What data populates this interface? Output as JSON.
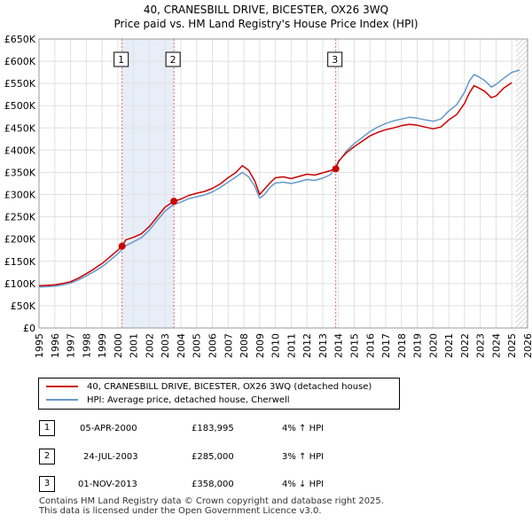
{
  "header": {
    "title": "40, CRANESBILL DRIVE, BICESTER, OX26 3WQ",
    "subtitle": "Price paid vs. HM Land Registry's House Price Index (HPI)"
  },
  "colors": {
    "price": "#cc0000",
    "hpi": "#6699cc",
    "shade": "#e8eef8",
    "marker_line": "#e06666"
  },
  "chart_data": {
    "type": "line",
    "title": "40, CRANESBILL DRIVE, BICESTER, OX26 3WQ",
    "subtitle": "Price paid vs. HM Land Registry's House Price Index (HPI)",
    "xlabel": "",
    "ylabel": "",
    "xlim": [
      1995,
      2026
    ],
    "ylim": [
      0,
      650000
    ],
    "yticks": [
      0,
      50000,
      100000,
      150000,
      200000,
      250000,
      300000,
      350000,
      400000,
      450000,
      500000,
      550000,
      600000,
      650000
    ],
    "ytick_labels": [
      "£0",
      "£50K",
      "£100K",
      "£150K",
      "£200K",
      "£250K",
      "£300K",
      "£350K",
      "£400K",
      "£450K",
      "£500K",
      "£550K",
      "£600K",
      "£650K"
    ],
    "xticks": [
      1995,
      1996,
      1997,
      1998,
      1999,
      2000,
      2001,
      2002,
      2003,
      2004,
      2005,
      2006,
      2007,
      2008,
      2009,
      2010,
      2011,
      2012,
      2013,
      2014,
      2015,
      2016,
      2017,
      2018,
      2019,
      2020,
      2021,
      2022,
      2023,
      2024,
      2025,
      2026
    ],
    "grid": true,
    "shaded_range": [
      2000.27,
      2003.56
    ],
    "future_from": 2025.25,
    "sale_markers": [
      {
        "label": "1",
        "x": 2000.27,
        "y": 183995
      },
      {
        "label": "2",
        "x": 2003.56,
        "y": 285000
      },
      {
        "label": "3",
        "x": 2013.83,
        "y": 358000
      }
    ],
    "series": [
      {
        "name": "40, CRANESBILL DRIVE, BICESTER, OX26 3WQ (detached house)",
        "x": [
          1995,
          1995.5,
          1996,
          1996.5,
          1997,
          1997.5,
          1998,
          1998.5,
          1999,
          1999.5,
          2000,
          2000.27,
          2000.5,
          2001,
          2001.5,
          2002,
          2002.5,
          2003,
          2003.56,
          2004,
          2004.5,
          2005,
          2005.5,
          2006,
          2006.5,
          2007,
          2007.5,
          2007.9,
          2008.3,
          2008.7,
          2009,
          2009.3,
          2009.7,
          2010,
          2010.5,
          2011,
          2011.5,
          2012,
          2012.5,
          2013,
          2013.5,
          2013.83,
          2014,
          2014.5,
          2015,
          2015.5,
          2016,
          2016.5,
          2017,
          2017.5,
          2018,
          2018.5,
          2019,
          2019.5,
          2020,
          2020.5,
          2021,
          2021.5,
          2022,
          2022.3,
          2022.6,
          2022.9,
          2023.3,
          2023.7,
          2024,
          2024.5,
          2025
        ],
        "y": [
          95000,
          96000,
          97000,
          100000,
          104000,
          112000,
          122000,
          133000,
          145000,
          160000,
          175000,
          183995,
          198000,
          204000,
          212000,
          228000,
          250000,
          272000,
          285000,
          290000,
          298000,
          303000,
          307000,
          314000,
          324000,
          338000,
          350000,
          365000,
          355000,
          330000,
          300000,
          312000,
          328000,
          338000,
          340000,
          336000,
          341000,
          346000,
          344000,
          349000,
          354000,
          358000,
          375000,
          394000,
          408000,
          420000,
          432000,
          440000,
          446000,
          450000,
          455000,
          458000,
          456000,
          452000,
          448000,
          452000,
          468000,
          480000,
          505000,
          528000,
          545000,
          540000,
          532000,
          518000,
          522000,
          540000,
          552000
        ]
      },
      {
        "name": "HPI: Average price, detached house, Cherwell",
        "x": [
          1995,
          1995.5,
          1996,
          1996.5,
          1997,
          1997.5,
          1998,
          1998.5,
          1999,
          1999.5,
          2000,
          2000.5,
          2001,
          2001.5,
          2002,
          2002.5,
          2003,
          2003.5,
          2004,
          2004.5,
          2005,
          2005.5,
          2006,
          2006.5,
          2007,
          2007.5,
          2007.9,
          2008.3,
          2008.7,
          2009,
          2009.3,
          2009.7,
          2010,
          2010.5,
          2011,
          2011.5,
          2012,
          2012.5,
          2013,
          2013.5,
          2014,
          2014.5,
          2015,
          2015.5,
          2016,
          2016.5,
          2017,
          2017.5,
          2018,
          2018.5,
          2019,
          2019.5,
          2020,
          2020.5,
          2021,
          2021.5,
          2022,
          2022.3,
          2022.6,
          2022.9,
          2023.3,
          2023.7,
          2024,
          2024.5,
          2025,
          2025.5
        ],
        "y": [
          92000,
          93000,
          94000,
          97000,
          101000,
          108000,
          117000,
          127000,
          138000,
          152000,
          167000,
          185000,
          194000,
          203000,
          220000,
          242000,
          263000,
          277000,
          283000,
          291000,
          295000,
          299000,
          306000,
          316000,
          328000,
          340000,
          350000,
          340000,
          318000,
          292000,
          300000,
          318000,
          326000,
          328000,
          325000,
          329000,
          334000,
          332000,
          337000,
          345000,
          372000,
          398000,
          415000,
          428000,
          442000,
          452000,
          460000,
          466000,
          470000,
          474000,
          472000,
          468000,
          465000,
          470000,
          488000,
          502000,
          530000,
          555000,
          570000,
          565000,
          556000,
          542000,
          548000,
          562000,
          575000,
          580000
        ]
      }
    ]
  },
  "legend": {
    "price_label": "40, CRANESBILL DRIVE, BICESTER, OX26 3WQ (detached house)",
    "hpi_label": "HPI: Average price, detached house, Cherwell"
  },
  "sales": [
    {
      "num": "1",
      "date": "05-APR-2000",
      "price": "£183,995",
      "delta": "4% ↑ HPI"
    },
    {
      "num": "2",
      "date": "24-JUL-2003",
      "price": "£285,000",
      "delta": "3% ↑ HPI"
    },
    {
      "num": "3",
      "date": "01-NOV-2013",
      "price": "£358,000",
      "delta": "4% ↓ HPI"
    }
  ],
  "footer": {
    "line1": "Contains HM Land Registry data © Crown copyright and database right 2025.",
    "line2": "This data is licensed under the Open Government Licence v3.0."
  }
}
